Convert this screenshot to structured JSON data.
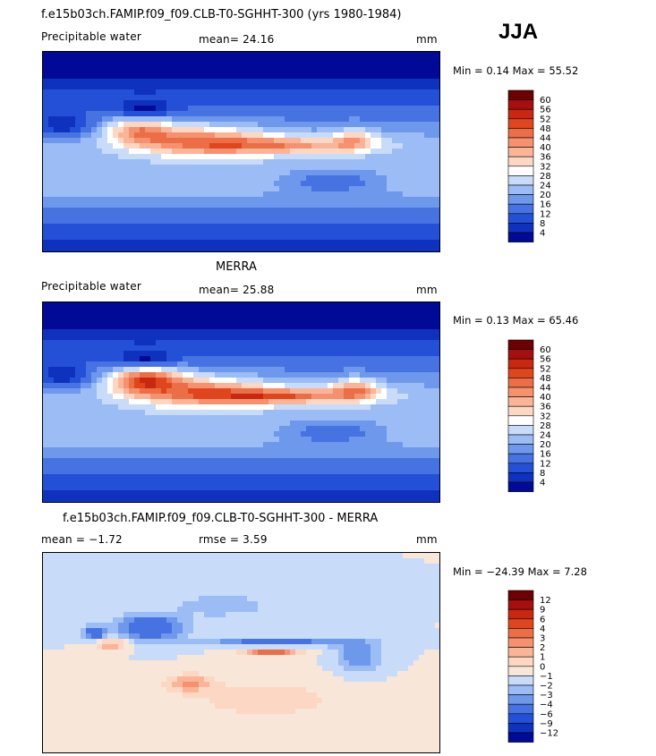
{
  "season": "JJA",
  "panels": [
    {
      "title": "f.e15b03ch.FAMIP.f09_f09.CLB-T0-SGHHT-300 (yrs 1980-1984)",
      "left_label": "Precipitable water",
      "center_label": "mean=  24.16",
      "right_label": "mm",
      "minmax": "Min =    0.14  Max =   55.52",
      "field": "model",
      "colorbar_levels": [
        "60",
        "56",
        "52",
        "48",
        "44",
        "40",
        "36",
        "32",
        "28",
        "24",
        "20",
        "16",
        "12",
        "8",
        "4"
      ]
    },
    {
      "title": "MERRA",
      "left_label": "Precipitable water",
      "center_label": "mean=  25.88",
      "right_label": "mm",
      "minmax": "Min =    0.13  Max =   65.46",
      "field": "obs",
      "colorbar_levels": [
        "60",
        "56",
        "52",
        "48",
        "44",
        "40",
        "36",
        "32",
        "28",
        "24",
        "20",
        "16",
        "12",
        "8",
        "4"
      ]
    },
    {
      "title": "f.e15b03ch.FAMIP.f09_f09.CLB-T0-SGHHT-300 - MERRA",
      "left_label": "mean =   −1.72",
      "center_label": "rmse =     3.59",
      "right_label": "mm",
      "minmax": "Min = −24.39  Max =     7.28",
      "field": "diff",
      "colorbar_levels": [
        "12",
        "9",
        "6",
        "4",
        "3",
        "2",
        "1",
        "0",
        "−1",
        "−2",
        "−3",
        "−4",
        "−6",
        "−9",
        "−12"
      ]
    }
  ],
  "colors": {
    "abs_scale": [
      "#6d0000",
      "#a50f0f",
      "#c8280f",
      "#e0461e",
      "#eb6e46",
      "#f5916e",
      "#fab498",
      "#fcd8c4",
      "#ffffff",
      "#c8dcfa",
      "#9bbcf5",
      "#6e98eb",
      "#4673e1",
      "#2350d7",
      "#0f32be",
      "#000a96"
    ],
    "diff_scale": [
      "#6d0000",
      "#a50f0f",
      "#c8280f",
      "#e0461e",
      "#eb6e46",
      "#f5916e",
      "#fab498",
      "#fcd8c4",
      "#f8e6d8",
      "#c8dcfa",
      "#9bbcf5",
      "#6e98eb",
      "#4673e1",
      "#2350d7",
      "#0f32be",
      "#000a96"
    ]
  }
}
